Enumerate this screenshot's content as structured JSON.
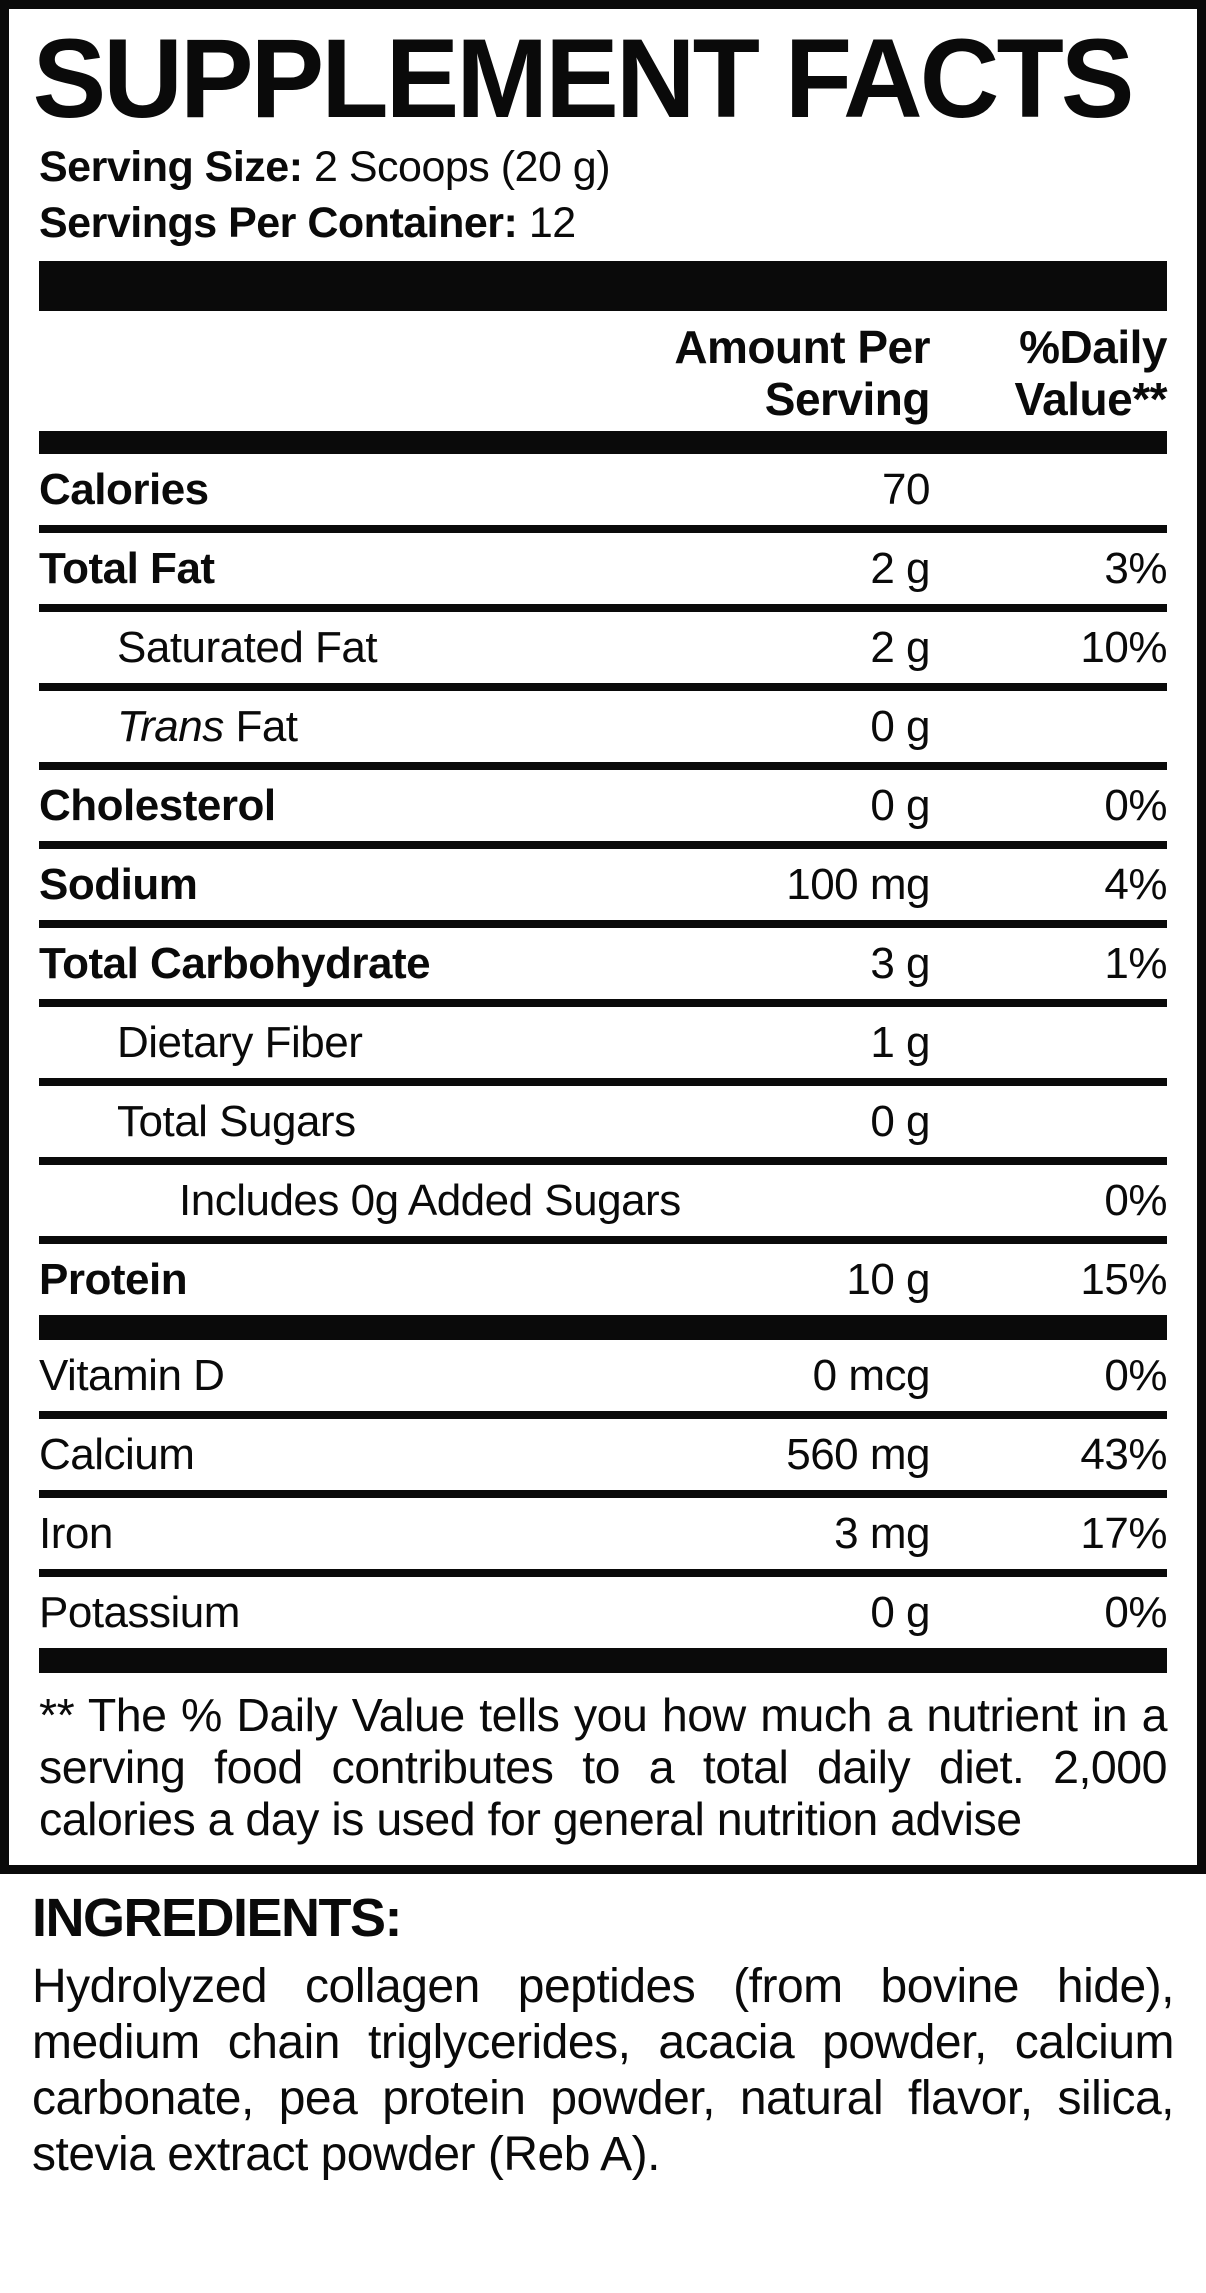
{
  "title": "SUPPLEMENT FACTS",
  "serving": {
    "size_label": "Serving Size:",
    "size_value": "2 Scoops (20 g)",
    "per_container_label": "Servings Per Container:",
    "per_container_value": "12"
  },
  "header": {
    "amount_line1": "Amount Per",
    "amount_line2": "Serving",
    "dv_line1": "%Daily",
    "dv_line2": "Value**"
  },
  "rows": [
    {
      "label": "Calories",
      "amount": "70",
      "dv": ""
    },
    {
      "label": "Total Fat",
      "amount": "2 g",
      "dv": "3%"
    },
    {
      "label": "Saturated Fat",
      "amount": "2 g",
      "dv": "10%"
    },
    {
      "italic": "Trans",
      "label": " Fat",
      "amount": "0 g",
      "dv": ""
    },
    {
      "label": "Cholesterol",
      "amount": "0 g",
      "dv": "0%"
    },
    {
      "label": "Sodium",
      "amount": "100 mg",
      "dv": "4%"
    },
    {
      "label": "Total Carbohydrate",
      "amount": "3 g",
      "dv": "1%"
    },
    {
      "label": "Dietary Fiber",
      "amount": "1 g",
      "dv": ""
    },
    {
      "label": "Total Sugars",
      "amount": "0 g",
      "dv": ""
    },
    {
      "label": "Includes 0g Added Sugars",
      "amount": "",
      "dv": "0%"
    },
    {
      "label": "Protein",
      "amount": "10 g",
      "dv": "15%"
    },
    {
      "label": "Vitamin D",
      "amount": "0 mcg",
      "dv": "0%"
    },
    {
      "label": "Calcium",
      "amount": "560 mg",
      "dv": "43%"
    },
    {
      "label": "Iron",
      "amount": "3 mg",
      "dv": "17%"
    },
    {
      "label": "Potassium",
      "amount": "0 g",
      "dv": "0%"
    }
  ],
  "footnote": "** The % Daily Value tells you how much a nutrient in a serving food contributes to a total daily diet. 2,000 calories a day is used for general nutrition advise",
  "ingredients": {
    "heading": "INGREDIENTS:",
    "text": "Hydrolyzed collagen peptides (from bovine hide), medium chain triglycerides, acacia powder, calcium carbonate, pea protein powder, natural flavor, silica, stevia extract powder (Reb A)."
  },
  "colors": {
    "ink": "#0a0a0a",
    "background": "#ffffff"
  }
}
